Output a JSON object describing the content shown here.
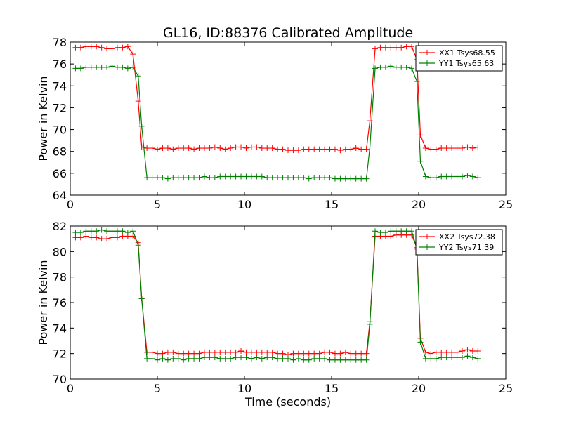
{
  "title": "GL16, ID:88376 Calibrated Amplitude",
  "chart_data": [
    {
      "type": "line",
      "ylabel": "Power in Kelvin",
      "xlabel": "",
      "xlim": [
        0,
        25
      ],
      "ylim": [
        64,
        78
      ],
      "xticks": [
        0,
        5,
        10,
        15,
        20,
        25
      ],
      "yticks": [
        64,
        66,
        68,
        70,
        72,
        74,
        76,
        78
      ],
      "legend_position": "top-right",
      "grid": false,
      "series": [
        {
          "name": "XX1 Tsys68.55",
          "color": "#ff0000",
          "x": [
            0.3,
            0.6,
            0.9,
            1.2,
            1.5,
            1.8,
            2.1,
            2.4,
            2.7,
            3.0,
            3.3,
            3.6,
            3.9,
            4.1,
            4.4,
            4.7,
            5.0,
            5.3,
            5.6,
            5.9,
            6.2,
            6.5,
            6.8,
            7.1,
            7.4,
            7.7,
            8.0,
            8.3,
            8.6,
            8.9,
            9.2,
            9.5,
            9.8,
            10.1,
            10.4,
            10.7,
            11.0,
            11.3,
            11.6,
            11.9,
            12.2,
            12.5,
            12.8,
            13.1,
            13.4,
            13.7,
            14.0,
            14.3,
            14.6,
            14.9,
            15.2,
            15.5,
            15.8,
            16.1,
            16.4,
            16.7,
            17.0,
            17.2,
            17.5,
            17.8,
            18.1,
            18.4,
            18.7,
            19.0,
            19.3,
            19.6,
            19.9,
            20.1,
            20.4,
            20.7,
            21.0,
            21.3,
            21.6,
            21.9,
            22.2,
            22.5,
            22.8,
            23.1,
            23.4
          ],
          "y": [
            77.5,
            77.5,
            77.6,
            77.6,
            77.6,
            77.5,
            77.4,
            77.4,
            77.5,
            77.5,
            77.6,
            76.9,
            72.6,
            68.4,
            68.3,
            68.3,
            68.2,
            68.3,
            68.3,
            68.2,
            68.3,
            68.3,
            68.3,
            68.2,
            68.3,
            68.3,
            68.3,
            68.4,
            68.3,
            68.2,
            68.3,
            68.4,
            68.4,
            68.3,
            68.4,
            68.4,
            68.3,
            68.3,
            68.3,
            68.2,
            68.2,
            68.1,
            68.1,
            68.1,
            68.2,
            68.2,
            68.2,
            68.2,
            68.2,
            68.2,
            68.2,
            68.1,
            68.2,
            68.2,
            68.3,
            68.2,
            68.2,
            70.8,
            77.4,
            77.5,
            77.5,
            77.5,
            77.5,
            77.5,
            77.6,
            77.6,
            76.4,
            69.5,
            68.3,
            68.2,
            68.2,
            68.3,
            68.3,
            68.3,
            68.3,
            68.3,
            68.4,
            68.3,
            68.4
          ]
        },
        {
          "name": "YY1 Tsys65.63",
          "color": "#008000",
          "x": [
            0.3,
            0.6,
            0.9,
            1.2,
            1.5,
            1.8,
            2.1,
            2.4,
            2.7,
            3.0,
            3.3,
            3.6,
            3.9,
            4.1,
            4.4,
            4.7,
            5.0,
            5.3,
            5.6,
            5.9,
            6.2,
            6.5,
            6.8,
            7.1,
            7.4,
            7.7,
            8.0,
            8.3,
            8.6,
            8.9,
            9.2,
            9.5,
            9.8,
            10.1,
            10.4,
            10.7,
            11.0,
            11.3,
            11.6,
            11.9,
            12.2,
            12.5,
            12.8,
            13.1,
            13.4,
            13.7,
            14.0,
            14.3,
            14.6,
            14.9,
            15.2,
            15.5,
            15.8,
            16.1,
            16.4,
            16.7,
            17.0,
            17.2,
            17.5,
            17.8,
            18.1,
            18.4,
            18.7,
            19.0,
            19.3,
            19.6,
            19.9,
            20.1,
            20.4,
            20.7,
            21.0,
            21.3,
            21.6,
            21.9,
            22.2,
            22.5,
            22.8,
            23.1,
            23.4
          ],
          "y": [
            75.6,
            75.6,
            75.7,
            75.7,
            75.7,
            75.7,
            75.7,
            75.8,
            75.7,
            75.7,
            75.6,
            75.7,
            74.9,
            70.3,
            65.6,
            65.6,
            65.6,
            65.6,
            65.5,
            65.6,
            65.6,
            65.6,
            65.6,
            65.6,
            65.6,
            65.7,
            65.6,
            65.6,
            65.7,
            65.7,
            65.7,
            65.7,
            65.7,
            65.7,
            65.7,
            65.7,
            65.7,
            65.6,
            65.6,
            65.6,
            65.6,
            65.6,
            65.6,
            65.6,
            65.6,
            65.5,
            65.6,
            65.6,
            65.6,
            65.6,
            65.5,
            65.5,
            65.5,
            65.5,
            65.5,
            65.5,
            65.5,
            68.4,
            75.6,
            75.7,
            75.7,
            75.8,
            75.7,
            75.7,
            75.7,
            75.6,
            74.4,
            67.1,
            65.7,
            65.6,
            65.6,
            65.7,
            65.7,
            65.7,
            65.7,
            65.7,
            65.8,
            65.7,
            65.6
          ]
        }
      ]
    },
    {
      "type": "line",
      "ylabel": "Power in Kelvin",
      "xlabel": "Time (seconds)",
      "xlim": [
        0,
        25
      ],
      "ylim": [
        70,
        82
      ],
      "xticks": [
        0,
        5,
        10,
        15,
        20,
        25
      ],
      "yticks": [
        70,
        72,
        74,
        76,
        78,
        80,
        82
      ],
      "legend_position": "top-right",
      "grid": false,
      "series": [
        {
          "name": "XX2 Tsys72.38",
          "color": "#ff0000",
          "x": [
            0.3,
            0.6,
            0.9,
            1.2,
            1.5,
            1.8,
            2.1,
            2.4,
            2.7,
            3.0,
            3.3,
            3.6,
            3.9,
            4.1,
            4.4,
            4.7,
            5.0,
            5.3,
            5.6,
            5.9,
            6.2,
            6.5,
            6.8,
            7.1,
            7.4,
            7.7,
            8.0,
            8.3,
            8.6,
            8.9,
            9.2,
            9.5,
            9.8,
            10.1,
            10.4,
            10.7,
            11.0,
            11.3,
            11.6,
            11.9,
            12.2,
            12.5,
            12.8,
            13.1,
            13.4,
            13.7,
            14.0,
            14.3,
            14.6,
            14.9,
            15.2,
            15.5,
            15.8,
            16.1,
            16.4,
            16.7,
            17.0,
            17.2,
            17.5,
            17.8,
            18.1,
            18.4,
            18.7,
            19.0,
            19.3,
            19.6,
            19.9,
            20.1,
            20.4,
            20.7,
            21.0,
            21.3,
            21.6,
            21.9,
            22.2,
            22.5,
            22.8,
            23.1,
            23.4
          ],
          "y": [
            81.1,
            81.1,
            81.2,
            81.1,
            81.1,
            81.0,
            81.0,
            81.1,
            81.1,
            81.2,
            81.2,
            81.2,
            80.7,
            76.3,
            72.1,
            72.1,
            72.0,
            72.0,
            72.1,
            72.1,
            72.0,
            72.0,
            72.0,
            72.0,
            72.0,
            72.1,
            72.1,
            72.1,
            72.1,
            72.1,
            72.1,
            72.1,
            72.2,
            72.1,
            72.1,
            72.1,
            72.1,
            72.1,
            72.1,
            72.0,
            72.0,
            71.9,
            72.0,
            72.0,
            72.0,
            72.0,
            72.0,
            72.0,
            72.1,
            72.1,
            72.0,
            72.0,
            72.1,
            72.0,
            72.0,
            72.0,
            72.0,
            74.5,
            81.2,
            81.2,
            81.2,
            81.2,
            81.3,
            81.3,
            81.3,
            81.3,
            80.3,
            73.2,
            72.1,
            72.0,
            72.1,
            72.1,
            72.1,
            72.1,
            72.1,
            72.2,
            72.3,
            72.2,
            72.2
          ]
        },
        {
          "name": "YY2 Tsys71.39",
          "color": "#008000",
          "x": [
            0.3,
            0.6,
            0.9,
            1.2,
            1.5,
            1.8,
            2.1,
            2.4,
            2.7,
            3.0,
            3.3,
            3.6,
            3.9,
            4.1,
            4.4,
            4.7,
            5.0,
            5.3,
            5.6,
            5.9,
            6.2,
            6.5,
            6.8,
            7.1,
            7.4,
            7.7,
            8.0,
            8.3,
            8.6,
            8.9,
            9.2,
            9.5,
            9.8,
            10.1,
            10.4,
            10.7,
            11.0,
            11.3,
            11.6,
            11.9,
            12.2,
            12.5,
            12.8,
            13.1,
            13.4,
            13.7,
            14.0,
            14.3,
            14.6,
            14.9,
            15.2,
            15.5,
            15.8,
            16.1,
            16.4,
            16.7,
            17.0,
            17.2,
            17.5,
            17.8,
            18.1,
            18.4,
            18.7,
            19.0,
            19.3,
            19.6,
            19.9,
            20.1,
            20.4,
            20.7,
            21.0,
            21.3,
            21.6,
            21.9,
            22.2,
            22.5,
            22.8,
            23.1,
            23.4
          ],
          "y": [
            81.5,
            81.5,
            81.6,
            81.6,
            81.6,
            81.7,
            81.6,
            81.6,
            81.6,
            81.6,
            81.5,
            81.6,
            80.5,
            76.3,
            71.6,
            71.6,
            71.5,
            71.6,
            71.5,
            71.6,
            71.6,
            71.5,
            71.6,
            71.6,
            71.6,
            71.7,
            71.7,
            71.7,
            71.6,
            71.6,
            71.6,
            71.7,
            71.7,
            71.7,
            71.6,
            71.7,
            71.6,
            71.7,
            71.7,
            71.6,
            71.6,
            71.6,
            71.5,
            71.6,
            71.5,
            71.5,
            71.6,
            71.6,
            71.6,
            71.5,
            71.5,
            71.5,
            71.5,
            71.5,
            71.5,
            71.5,
            71.5,
            74.3,
            81.6,
            81.5,
            81.5,
            81.6,
            81.6,
            81.6,
            81.6,
            81.6,
            80.2,
            72.9,
            71.6,
            71.6,
            71.6,
            71.7,
            71.7,
            71.7,
            71.7,
            71.7,
            71.8,
            71.7,
            71.6
          ]
        }
      ]
    }
  ]
}
